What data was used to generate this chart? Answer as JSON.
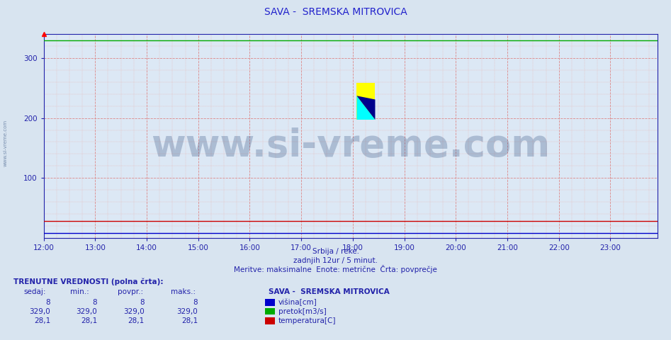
{
  "title": "SAVA -  SREMSKA MITROVICA",
  "title_color": "#2222cc",
  "title_fontsize": 10,
  "background_color": "#d8e4f0",
  "plot_bg_color": "#dce8f5",
  "xlim_start": 0,
  "xlim_end": 143,
  "ylim": [
    0,
    340
  ],
  "yticks": [
    100,
    200,
    300
  ],
  "xtick_labels": [
    "12:00",
    "13:00",
    "14:00",
    "15:00",
    "16:00",
    "17:00",
    "18:00",
    "19:00",
    "20:00",
    "21:00",
    "22:00",
    "23:00"
  ],
  "xtick_positions": [
    0,
    12,
    24,
    36,
    48,
    60,
    72,
    84,
    96,
    108,
    120,
    132
  ],
  "grid_major_color": "#dd8888",
  "grid_minor_color": "#e8bbbb",
  "axis_color": "#2222aa",
  "line_visina_color": "#0000cc",
  "line_visina_value": 8,
  "line_pretok_color": "#00aa00",
  "line_pretok_value": 329.0,
  "line_temp_color": "#cc0000",
  "line_temp_value": 28.1,
  "watermark_text": "www.si-vreme.com",
  "watermark_color": "#1a3a6e",
  "watermark_alpha": 0.25,
  "watermark_fontsize": 38,
  "sidebar_text": "www.si-vreme.com",
  "xlabel_line1": "Srbija / reke.",
  "xlabel_line2": "zadnjih 12ur / 5 minut.",
  "xlabel_line3": "Meritve: maksimalne  Enote: metrične  Črta: povprečje",
  "xlabel_color": "#2222aa",
  "legend_title": "SAVA -  SREMSKA MITROVICA",
  "legend_items": [
    "višina[cm]",
    "pretok[m3/s]",
    "temperatura[C]"
  ],
  "legend_colors": [
    "#0000cc",
    "#00aa00",
    "#cc0000"
  ],
  "legend_values_sedaj": [
    "8",
    "329,0",
    "28,1"
  ],
  "legend_values_min": [
    "8",
    "329,0",
    "28,1"
  ],
  "legend_values_povpr": [
    "8",
    "329,0",
    "28,1"
  ],
  "legend_values_maks": [
    "8",
    "329,0",
    "28,1"
  ],
  "table_headers": [
    "sedaj:",
    "min.:",
    "povpr.:",
    "maks.:"
  ],
  "bottom_label": "TRENUTNE VREDNOSTI (polna črta):",
  "bottom_label_color": "#2222aa",
  "icon_colors": [
    "yellow",
    "cyan",
    "#00008B"
  ]
}
